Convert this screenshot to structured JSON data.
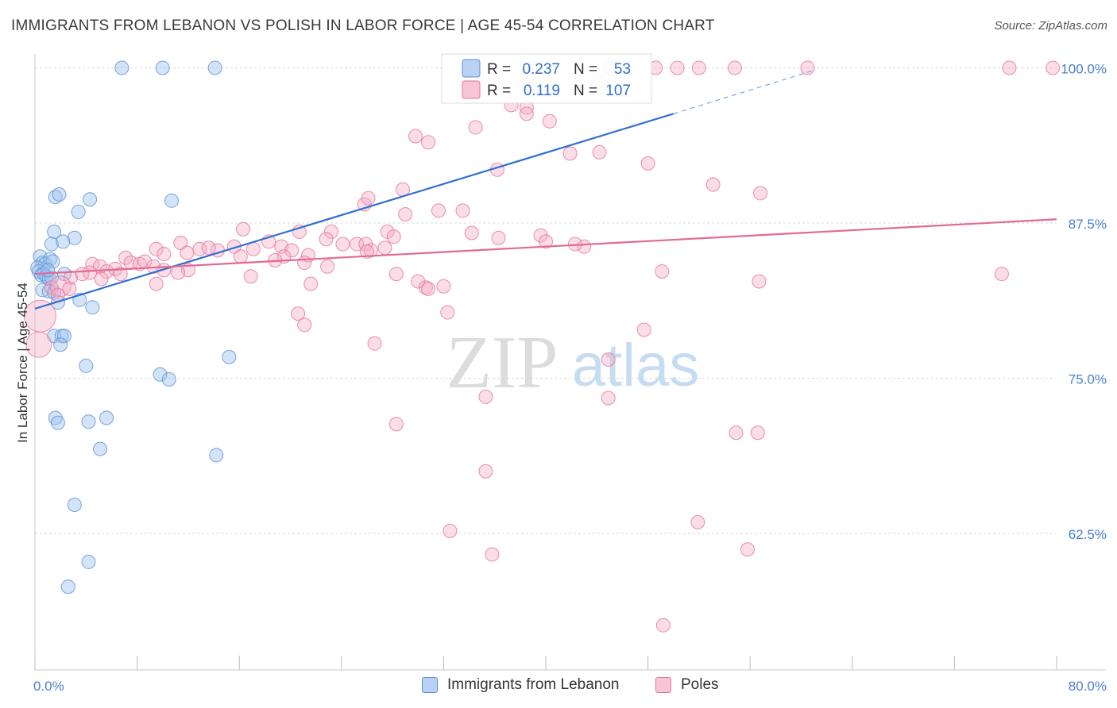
{
  "title": "IMMIGRANTS FROM LEBANON VS POLISH IN LABOR FORCE | AGE 45-54 CORRELATION CHART",
  "source": "Source: ZipAtlas.com",
  "watermark": {
    "zip": "ZIP",
    "atlas": "atlas"
  },
  "chart_data": {
    "type": "scatter",
    "xlabel": "",
    "ylabel": "In Labor Force | Age 45-54",
    "xlim": [
      0,
      80
    ],
    "ylim": [
      51.5,
      101.5
    ],
    "x_tick_labels": [
      "0.0%",
      "80.0%"
    ],
    "y_ticks": [
      62.5,
      75.0,
      87.5,
      100.0
    ],
    "y_tick_labels": [
      "62.5%",
      "75.0%",
      "87.5%",
      "100.0%"
    ],
    "grid": true,
    "legend_placement": "top-center",
    "legend": [
      {
        "r_label": "R =",
        "r_value": "0.237",
        "n_label": "N =",
        "n_value": "53",
        "color": "#5b8fd6",
        "fill": "#b9d2f4"
      },
      {
        "r_label": "R =",
        "r_value": "0.119",
        "n_label": "N =",
        "n_value": "107",
        "color": "#e5739b",
        "fill": "#f8c5d6"
      }
    ],
    "series": [
      {
        "name": "Immigrants from Lebanon",
        "color": "#5b8fd6",
        "fill": "rgba(160,195,240,0.45)",
        "trend": {
          "x0": 0,
          "y0": 80.6,
          "x1": 50,
          "y1": 96.3,
          "dash_to_x": 61,
          "dash_to_y": 99.8
        },
        "points": [
          [
            6.8,
            100
          ],
          [
            10,
            100
          ],
          [
            14.1,
            100
          ],
          [
            45,
            100
          ],
          [
            1.6,
            89.6
          ],
          [
            1.9,
            89.8
          ],
          [
            4.3,
            89.4
          ],
          [
            10.7,
            89.3
          ],
          [
            3.4,
            88.4
          ],
          [
            1.5,
            86.8
          ],
          [
            3.1,
            86.3
          ],
          [
            1.3,
            85.8
          ],
          [
            2.2,
            86.0
          ],
          [
            0.4,
            84.8
          ],
          [
            0.6,
            84.3
          ],
          [
            0.8,
            84.2
          ],
          [
            1.2,
            84.6
          ],
          [
            1.4,
            84.4
          ],
          [
            0.2,
            83.9
          ],
          [
            0.3,
            83.6
          ],
          [
            0.5,
            83.3
          ],
          [
            0.7,
            83.4
          ],
          [
            0.9,
            83.2
          ],
          [
            1.1,
            83.0
          ],
          [
            1.3,
            83.1
          ],
          [
            1.0,
            83.7
          ],
          [
            2.3,
            83.4
          ],
          [
            0.6,
            82.1
          ],
          [
            1.1,
            82.0
          ],
          [
            1.5,
            81.9
          ],
          [
            3.5,
            81.3
          ],
          [
            1.8,
            81.1
          ],
          [
            4.5,
            80.7
          ],
          [
            1.5,
            78.4
          ],
          [
            2.1,
            78.4
          ],
          [
            2.3,
            78.4
          ],
          [
            2.0,
            77.7
          ],
          [
            15.2,
            76.7
          ],
          [
            4,
            76.0
          ],
          [
            9.8,
            75.3
          ],
          [
            10.5,
            74.9
          ],
          [
            1.6,
            71.8
          ],
          [
            1.8,
            71.4
          ],
          [
            5.6,
            71.8
          ],
          [
            4.2,
            71.5
          ],
          [
            5.1,
            69.3
          ],
          [
            14.2,
            68.8
          ],
          [
            3.1,
            64.8
          ],
          [
            4.2,
            60.2
          ],
          [
            2.6,
            58.2
          ]
        ]
      },
      {
        "name": "Poles",
        "color": "#e5739b",
        "fill": "rgba(244,170,195,0.40)",
        "trend": {
          "x0": 0,
          "y0": 83.4,
          "x1": 80,
          "y1": 87.8
        },
        "points": [
          [
            45.6,
            100
          ],
          [
            48.6,
            100
          ],
          [
            50.3,
            100
          ],
          [
            52.0,
            100
          ],
          [
            54.8,
            100
          ],
          [
            60.5,
            100
          ],
          [
            76.3,
            100
          ],
          [
            79.7,
            100
          ],
          [
            37.3,
            97.0
          ],
          [
            38.7,
            99.4
          ],
          [
            38.2,
            98.7
          ],
          [
            38.5,
            96.8
          ],
          [
            42.5,
            98.5
          ],
          [
            44.2,
            98.9
          ],
          [
            38.5,
            96.3
          ],
          [
            29.8,
            94.5
          ],
          [
            40.3,
            95.7
          ],
          [
            30.8,
            94.0
          ],
          [
            34.5,
            95.2
          ],
          [
            41.9,
            93.1
          ],
          [
            44.2,
            93.2
          ],
          [
            48.0,
            92.3
          ],
          [
            53.1,
            90.6
          ],
          [
            56.8,
            89.9
          ],
          [
            36.2,
            91.8
          ],
          [
            25.8,
            89.0
          ],
          [
            26.1,
            89.5
          ],
          [
            28.8,
            90.2
          ],
          [
            29.0,
            88.2
          ],
          [
            31.6,
            88.5
          ],
          [
            33.5,
            88.5
          ],
          [
            23.2,
            86.8
          ],
          [
            27.6,
            86.8
          ],
          [
            28.1,
            86.4
          ],
          [
            34.2,
            86.7
          ],
          [
            36.3,
            86.3
          ],
          [
            39.6,
            86.5
          ],
          [
            40.0,
            86.0
          ],
          [
            43.0,
            85.6
          ],
          [
            42.3,
            85.8
          ],
          [
            16.3,
            87.0
          ],
          [
            20.7,
            86.8
          ],
          [
            22.8,
            86.2
          ],
          [
            17.1,
            85.4
          ],
          [
            18.3,
            86.0
          ],
          [
            19.3,
            85.6
          ],
          [
            20.1,
            85.3
          ],
          [
            24.1,
            85.8
          ],
          [
            25.2,
            85.8
          ],
          [
            25.9,
            85.8
          ],
          [
            26.3,
            85.3
          ],
          [
            27.4,
            85.5
          ],
          [
            21.4,
            84.9
          ],
          [
            19.5,
            84.8
          ],
          [
            12.9,
            85.4
          ],
          [
            14.3,
            85.3
          ],
          [
            15.6,
            85.6
          ],
          [
            11.4,
            85.9
          ],
          [
            13.6,
            85.5
          ],
          [
            11.9,
            85.1
          ],
          [
            9.5,
            85.4
          ],
          [
            10.1,
            85.0
          ],
          [
            7.1,
            84.7
          ],
          [
            7.5,
            84.3
          ],
          [
            8.2,
            84.2
          ],
          [
            8.6,
            84.4
          ],
          [
            9.3,
            84.0
          ],
          [
            10.1,
            83.7
          ],
          [
            4.5,
            84.2
          ],
          [
            5.1,
            84.0
          ],
          [
            5.6,
            83.6
          ],
          [
            6.3,
            83.8
          ],
          [
            16.1,
            84.8
          ],
          [
            18.8,
            84.5
          ],
          [
            21.1,
            84.3
          ],
          [
            22.9,
            84.0
          ],
          [
            26.0,
            85.2
          ],
          [
            2.8,
            83.1
          ],
          [
            3.7,
            83.4
          ],
          [
            4.3,
            83.5
          ],
          [
            5.2,
            83.0
          ],
          [
            6.7,
            83.4
          ],
          [
            9.5,
            82.6
          ],
          [
            12.0,
            83.7
          ],
          [
            16.9,
            83.2
          ],
          [
            21.6,
            82.6
          ],
          [
            28.3,
            83.4
          ],
          [
            30.0,
            82.8
          ],
          [
            30.6,
            82.3
          ],
          [
            32.0,
            82.4
          ],
          [
            30.8,
            82.2
          ],
          [
            1.3,
            82.3
          ],
          [
            2.0,
            82.4
          ],
          [
            2.7,
            82.2
          ],
          [
            1.8,
            81.7
          ],
          [
            11.2,
            83.5
          ],
          [
            49.1,
            83.6
          ],
          [
            56.7,
            82.8
          ],
          [
            75.7,
            83.4
          ],
          [
            0.4,
            80.0
          ],
          [
            0.3,
            77.7
          ],
          [
            20.6,
            80.2
          ],
          [
            21.1,
            79.3
          ],
          [
            32.3,
            80.3
          ],
          [
            47.7,
            78.9
          ],
          [
            26.6,
            77.8
          ],
          [
            44.9,
            76.5
          ],
          [
            44.9,
            73.4
          ],
          [
            35.3,
            73.5
          ],
          [
            56.6,
            70.6
          ],
          [
            54.9,
            70.6
          ],
          [
            28.3,
            71.3
          ],
          [
            35.3,
            67.5
          ],
          [
            51.9,
            63.4
          ],
          [
            55.8,
            61.2
          ],
          [
            35.8,
            60.8
          ],
          [
            32.5,
            62.7
          ],
          [
            49.2,
            55.1
          ]
        ]
      }
    ]
  }
}
